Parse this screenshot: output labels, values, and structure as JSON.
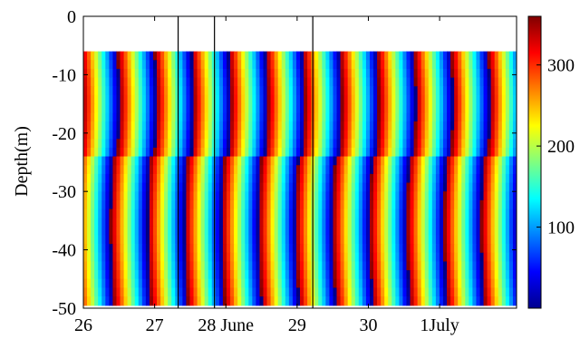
{
  "chart_data": {
    "type": "heatmap",
    "title": "",
    "ylabel": "Depth(m)",
    "xlabel": "",
    "xlim": [
      26,
      32.08
    ],
    "ylim": [
      -50,
      0
    ],
    "x_ticks": [
      {
        "value": 26,
        "label": "26"
      },
      {
        "value": 27,
        "label": "27"
      },
      {
        "value": 28,
        "label": "28 June"
      },
      {
        "value": 29,
        "label": "29"
      },
      {
        "value": 30,
        "label": "30"
      },
      {
        "value": 31,
        "label": "1July"
      }
    ],
    "y_ticks": [
      {
        "value": 0,
        "label": "0"
      },
      {
        "value": -10,
        "label": "-10"
      },
      {
        "value": -20,
        "label": "-20"
      },
      {
        "value": -30,
        "label": "-30"
      },
      {
        "value": -40,
        "label": "-40"
      },
      {
        "value": -50,
        "label": "-50"
      }
    ],
    "colorbar": {
      "colormap": "jet",
      "range": [
        0,
        360
      ],
      "ticks": [
        {
          "value": 100,
          "label": "100"
        },
        {
          "value": 200,
          "label": "200"
        },
        {
          "value": 300,
          "label": "300"
        }
      ]
    },
    "data_depth_range": [
      -6,
      -48
    ],
    "vertical_markers": [
      27.33,
      27.84,
      29.22
    ],
    "phase_field": {
      "period_days": 0.52,
      "upper_layer": {
        "depth_range": [
          -6,
          -24
        ],
        "phase_at_x26": 330
      },
      "lower_layer": {
        "depth_range": [
          -24,
          -48
        ],
        "phase_at_x26": 290
      },
      "interface_depth": -24
    }
  }
}
